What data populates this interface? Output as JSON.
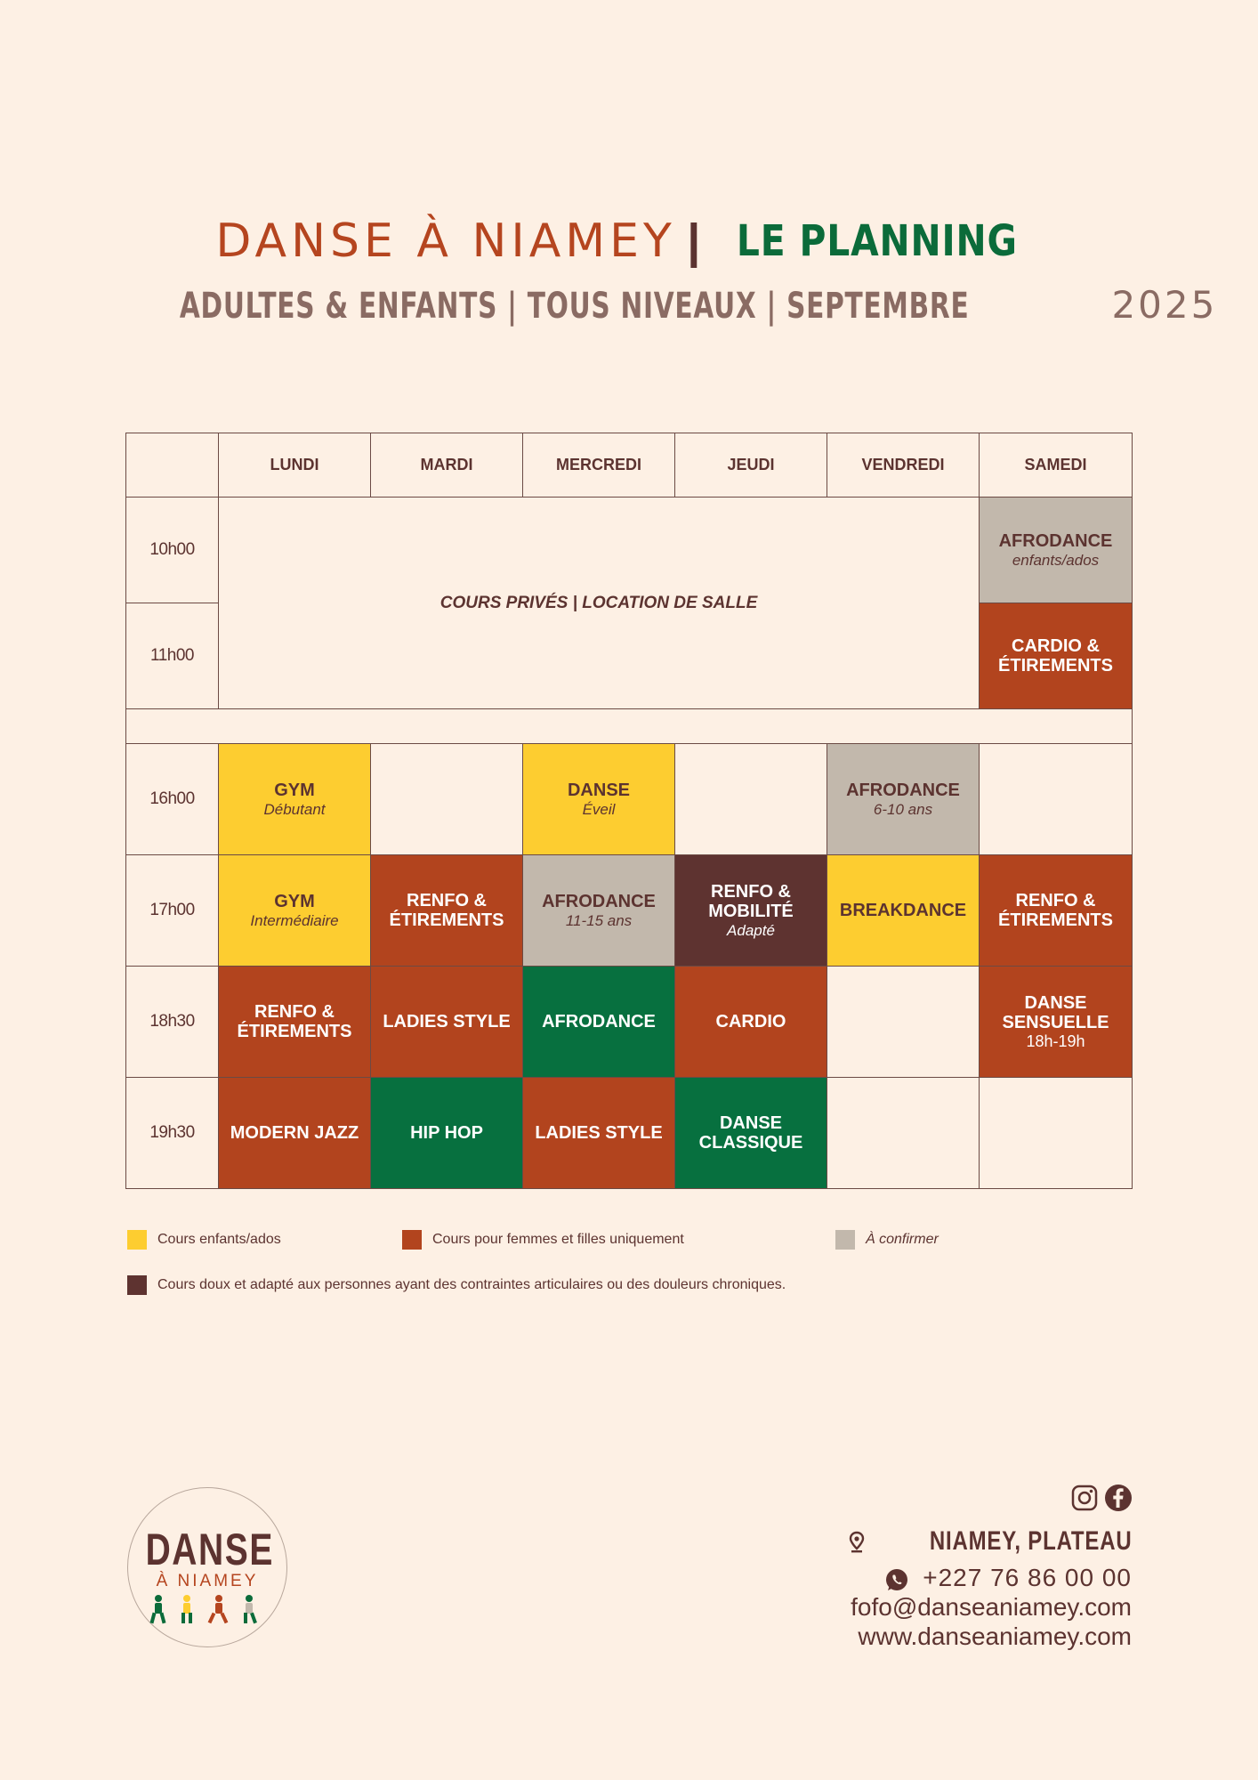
{
  "header": {
    "title": "DANSE À NIAMEY",
    "separator": "|",
    "planning": "LE PLANNING",
    "subtitle": "ADULTES & ENFANTS | TOUS NIVEAUX | SEPTEMBRE",
    "year": "2025"
  },
  "schedule": {
    "days": [
      "LUNDI",
      "MARDI",
      "MERCREDI",
      "JEUDI",
      "VENDREDI",
      "SAMEDI"
    ],
    "times": [
      "10h00",
      "11h00",
      "16h00",
      "17h00",
      "18h30",
      "19h30"
    ],
    "private": "COURS PRIVÉS | LOCATION DE SALLE",
    "sat_10": {
      "name": "AFRODANCE",
      "sub": "enfants/ados"
    },
    "sat_11": {
      "name": "CARDIO & ÉTIREMENTS"
    },
    "r16": {
      "mon": {
        "name": "GYM",
        "sub": "Débutant"
      },
      "wed": {
        "name": "DANSE",
        "sub": "Éveil"
      },
      "fri": {
        "name": "AFRODANCE",
        "sub": "6-10 ans"
      }
    },
    "r17": {
      "mon": {
        "name": "GYM",
        "sub": "Intermédiaire"
      },
      "tue": {
        "name": "RENFO & ÉTIREMENTS"
      },
      "wed": {
        "name": "AFRODANCE",
        "sub": "11-15 ans"
      },
      "thu": {
        "name": "RENFO & MOBILITÉ",
        "sub": "Adapté"
      },
      "fri": {
        "name": "BREAKDANCE"
      },
      "sat": {
        "name": "RENFO & ÉTIREMENTS"
      }
    },
    "r1830": {
      "mon": {
        "name": "RENFO & ÉTIREMENTS"
      },
      "tue": {
        "name": "LADIES STYLE"
      },
      "wed": {
        "name": "AFRODANCE"
      },
      "thu": {
        "name": "CARDIO"
      },
      "sat": {
        "name": "DANSE SENSUELLE",
        "sub": "18h-19h"
      }
    },
    "r1930": {
      "mon": {
        "name": "MODERN JAZZ"
      },
      "tue": {
        "name": "HIP HOP"
      },
      "wed": {
        "name": "LADIES STYLE"
      },
      "thu": {
        "name": "DANSE CLASSIQUE"
      }
    }
  },
  "legend": {
    "yellow": "Cours enfants/ados",
    "rust": "Cours pour femmes et filles uniquement",
    "grey": "À confirmer",
    "brown": "Cours doux et adapté aux personnes ayant des contraintes articulaires ou des douleurs chroniques."
  },
  "colors": {
    "yellow": "#fdcd30",
    "rust": "#b2441e",
    "grey": "#c2b8ac",
    "brown": "#5e3330",
    "green": "#07703f",
    "background": "#fdf0e4"
  },
  "logo": {
    "line1": "DANSE",
    "line2": "À NIAMEY"
  },
  "contact": {
    "location": "NIAMEY, PLATEAU",
    "phone": "+227 76 86 00 00",
    "email": "fofo@danseaniamey.com",
    "website": "www.danseaniamey.com"
  },
  "icons": [
    "instagram-icon",
    "facebook-icon",
    "location-pin-icon",
    "whatsapp-icon"
  ]
}
